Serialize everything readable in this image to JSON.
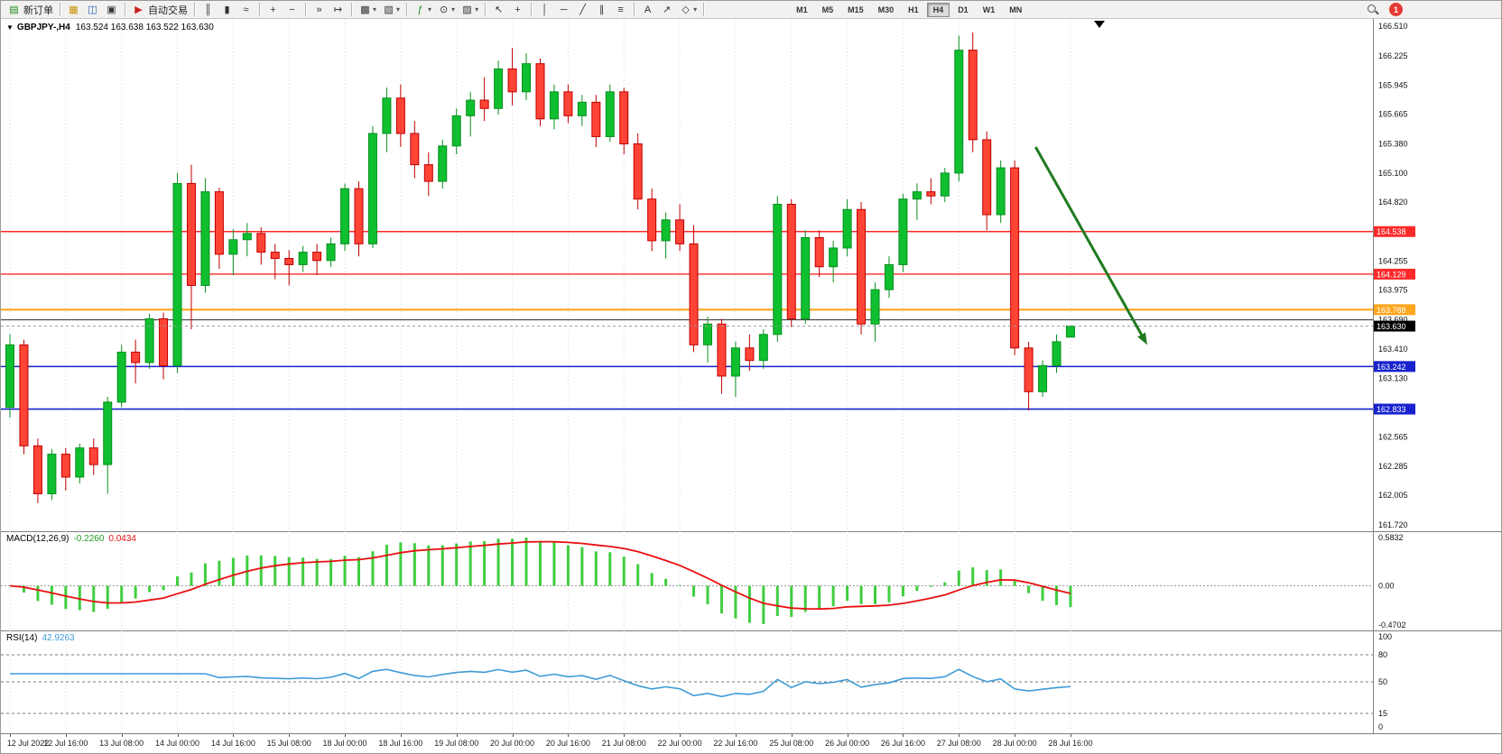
{
  "toolbar": {
    "new_order_label": "新订单",
    "auto_trading_label": "自动交易",
    "timeframes": [
      "M1",
      "M5",
      "M15",
      "M30",
      "H1",
      "H4",
      "D1",
      "W1",
      "MN"
    ],
    "active_timeframe": "H4",
    "notification_count": "1"
  },
  "icons": {
    "new_order": "▤",
    "market_watch": "▦",
    "navigator": "◫",
    "terminal": "▣",
    "auto_trading": "▶",
    "bars_chart": "║",
    "candles_chart": "▮",
    "line_chart": "≈",
    "zoom_in": "+",
    "zoom_out": "−",
    "auto_scroll": "»",
    "chart_shift": "↦",
    "new_chart": "▩",
    "profiles": "▧",
    "indicators": "ƒ",
    "periods": "⊙",
    "templates": "▨",
    "cursor": "↖",
    "crosshair": "+",
    "vertical_line": "│",
    "horizontal_line": "─",
    "trendline": "╱",
    "channel": "∥",
    "fibonacci": "≡",
    "text_tool": "A",
    "arrow_tool": "↗",
    "shapes": "◇",
    "caret": "▾",
    "expand": "▼"
  },
  "chart": {
    "title_symbol": "GBPJPY-,H4",
    "title_ohlc": "163.524 163.638 163.522 163.630"
  },
  "macd": {
    "name": "MACD(12,26,9)",
    "main_value": "-0.2260",
    "signal_value": "0.0434",
    "axis_max": "0.5832",
    "axis_zero": "0.00",
    "axis_min": "-0.4702"
  },
  "rsi": {
    "name": "RSI(14)",
    "value": "42.9263",
    "axis": [
      "100",
      "80",
      "50",
      "15",
      "0"
    ],
    "levels": [
      80,
      50,
      15
    ]
  },
  "chart_data": {
    "type": "candlestick",
    "symbol": "GBPJPY-",
    "timeframe": "H4",
    "price_min": 161.66,
    "price_max": 166.58,
    "colors": {
      "up": "#0FBF2F",
      "up_border": "#089020",
      "down": "#FF4436",
      "down_border": "#C00000",
      "macd_bar": "#3FCE3F",
      "macd_signal": "#E81010",
      "rsi_line": "#3E9BD8",
      "arrow": "#1F7A1F",
      "grid": "#d9d9d9"
    },
    "price_axis_ticks": [
      "166.510",
      "166.225",
      "165.945",
      "165.665",
      "165.380",
      "165.100",
      "164.820",
      "164.255",
      "163.975",
      "163.690",
      "163.410",
      "163.130",
      "162.565",
      "162.285",
      "162.005",
      "161.720"
    ],
    "hlines": [
      {
        "price": 164.538,
        "label": "164.538",
        "color": "#FF2A2A",
        "width": 1.4
      },
      {
        "price": 164.129,
        "label": "164.129",
        "color": "#FF2A2A",
        "width": 1.4
      },
      {
        "price": 163.788,
        "label": "163.788",
        "color": "#FFA51E",
        "width": 2.2
      },
      {
        "price": 163.69,
        "label": null,
        "color": "#2A2A2A",
        "width": 1
      },
      {
        "price": 163.242,
        "label": "163.242",
        "color": "#1822CE",
        "width": 1.6
      },
      {
        "price": 162.833,
        "label": "162.833",
        "color": "#1822CE",
        "width": 1.6
      }
    ],
    "current_price": {
      "value": 163.63,
      "label": "163.630",
      "color": "#000000"
    },
    "arrow": {
      "x1_index": 73.5,
      "y1_price": 165.35,
      "x2_index": 81.5,
      "y2_price": 163.45
    },
    "time_labels": [
      "12 Jul 2022",
      "12 Jul 16:00",
      "13 Jul 08:00",
      "14 Jul 00:00",
      "14 Jul 16:00",
      "15 Jul 08:00",
      "18 Jul 00:00",
      "18 Jul 16:00",
      "19 Jul 08:00",
      "20 Jul 00:00",
      "20 Jul 16:00",
      "21 Jul 08:00",
      "22 Jul 00:00",
      "22 Jul 16:00",
      "25 Jul 08:00",
      "26 Jul 00:00",
      "26 Jul 16:00",
      "27 Jul 08:00",
      "28 Jul 00:00",
      "28 Jul 16:00"
    ],
    "candles": [
      [
        162.85,
        163.55,
        162.75,
        163.45
      ],
      [
        163.45,
        163.5,
        162.4,
        162.48
      ],
      [
        162.48,
        162.55,
        161.93,
        162.02
      ],
      [
        162.02,
        162.45,
        161.96,
        162.4
      ],
      [
        162.4,
        162.46,
        162.05,
        162.18
      ],
      [
        162.18,
        162.5,
        162.12,
        162.46
      ],
      [
        162.46,
        162.55,
        162.2,
        162.3
      ],
      [
        162.3,
        162.95,
        162.02,
        162.9
      ],
      [
        162.9,
        163.45,
        162.85,
        163.38
      ],
      [
        163.38,
        163.5,
        163.08,
        163.28
      ],
      [
        163.28,
        163.75,
        163.22,
        163.7
      ],
      [
        163.7,
        163.76,
        163.12,
        163.25
      ],
      [
        163.25,
        165.1,
        163.18,
        165.0
      ],
      [
        165.0,
        165.18,
        163.6,
        164.02
      ],
      [
        164.02,
        165.05,
        163.95,
        164.92
      ],
      [
        164.92,
        164.96,
        164.18,
        164.32
      ],
      [
        164.32,
        164.56,
        164.12,
        164.46
      ],
      [
        164.46,
        164.62,
        164.3,
        164.52
      ],
      [
        164.52,
        164.58,
        164.22,
        164.34
      ],
      [
        164.34,
        164.42,
        164.08,
        164.28
      ],
      [
        164.28,
        164.36,
        164.02,
        164.22
      ],
      [
        164.22,
        164.4,
        164.15,
        164.34
      ],
      [
        164.34,
        164.42,
        164.12,
        164.26
      ],
      [
        164.26,
        164.48,
        164.2,
        164.42
      ],
      [
        164.42,
        165.0,
        164.35,
        164.95
      ],
      [
        164.95,
        165.02,
        164.3,
        164.42
      ],
      [
        164.42,
        165.55,
        164.38,
        165.48
      ],
      [
        165.48,
        165.92,
        165.3,
        165.82
      ],
      [
        165.82,
        165.95,
        165.35,
        165.48
      ],
      [
        165.48,
        165.6,
        165.05,
        165.18
      ],
      [
        165.18,
        165.3,
        164.88,
        165.02
      ],
      [
        165.02,
        165.42,
        164.95,
        165.36
      ],
      [
        165.36,
        165.72,
        165.28,
        165.65
      ],
      [
        165.65,
        165.88,
        165.45,
        165.8
      ],
      [
        165.8,
        166.02,
        165.6,
        165.72
      ],
      [
        165.72,
        166.18,
        165.66,
        166.1
      ],
      [
        166.1,
        166.3,
        165.75,
        165.88
      ],
      [
        165.88,
        166.25,
        165.8,
        166.15
      ],
      [
        166.15,
        166.2,
        165.55,
        165.62
      ],
      [
        165.62,
        165.95,
        165.52,
        165.88
      ],
      [
        165.88,
        165.95,
        165.58,
        165.65
      ],
      [
        165.65,
        165.85,
        165.55,
        165.78
      ],
      [
        165.78,
        165.85,
        165.35,
        165.45
      ],
      [
        165.45,
        165.95,
        165.4,
        165.88
      ],
      [
        165.88,
        165.92,
        165.28,
        165.38
      ],
      [
        165.38,
        165.48,
        164.75,
        164.85
      ],
      [
        164.85,
        164.95,
        164.35,
        164.45
      ],
      [
        164.45,
        164.72,
        164.28,
        164.65
      ],
      [
        164.65,
        164.8,
        164.35,
        164.42
      ],
      [
        164.42,
        164.6,
        163.38,
        163.45
      ],
      [
        163.45,
        163.72,
        163.28,
        163.65
      ],
      [
        163.65,
        163.7,
        162.98,
        163.15
      ],
      [
        163.15,
        163.48,
        162.95,
        163.42
      ],
      [
        163.42,
        163.55,
        163.2,
        163.3
      ],
      [
        163.3,
        163.6,
        163.22,
        163.55
      ],
      [
        163.55,
        164.88,
        163.48,
        164.8
      ],
      [
        164.8,
        164.85,
        163.62,
        163.7
      ],
      [
        163.7,
        164.55,
        163.65,
        164.48
      ],
      [
        164.48,
        164.55,
        164.1,
        164.2
      ],
      [
        164.2,
        164.45,
        164.05,
        164.38
      ],
      [
        164.38,
        164.85,
        164.3,
        164.75
      ],
      [
        164.75,
        164.82,
        163.55,
        163.65
      ],
      [
        163.65,
        164.05,
        163.48,
        163.98
      ],
      [
        163.98,
        164.3,
        163.9,
        164.22
      ],
      [
        164.22,
        164.9,
        164.15,
        164.85
      ],
      [
        164.85,
        165.0,
        164.65,
        164.92
      ],
      [
        164.92,
        165.05,
        164.8,
        164.88
      ],
      [
        164.88,
        165.15,
        164.82,
        165.1
      ],
      [
        165.1,
        166.42,
        165.02,
        166.28
      ],
      [
        166.28,
        166.45,
        165.3,
        165.42
      ],
      [
        165.42,
        165.5,
        164.55,
        164.7
      ],
      [
        164.7,
        165.22,
        164.62,
        165.15
      ],
      [
        165.15,
        165.22,
        163.35,
        163.42
      ],
      [
        163.42,
        163.48,
        162.82,
        163.0
      ],
      [
        163.0,
        163.3,
        162.95,
        163.25
      ],
      [
        163.25,
        163.55,
        163.18,
        163.48
      ],
      [
        163.524,
        163.638,
        163.522,
        163.63
      ]
    ]
  }
}
